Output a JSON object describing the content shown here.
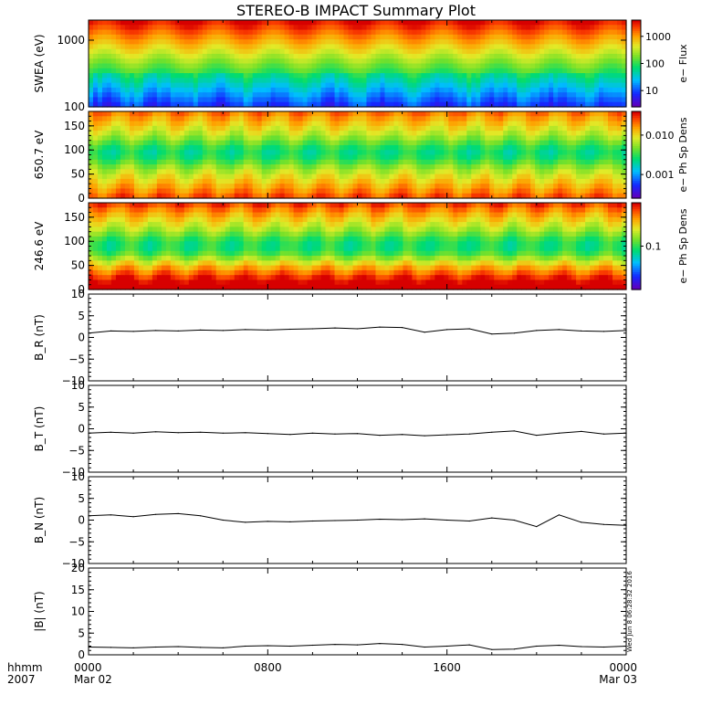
{
  "title": "STEREO-B IMPACT Summary Plot",
  "side_stamp": "Wed Jun  8 06:28:32 2016",
  "time_axis": {
    "row1_labels": [
      "hhmm",
      "0000",
      "0800",
      "1600",
      "0000"
    ],
    "row2_labels": [
      "2007",
      "Mar 02",
      "",
      "",
      "Mar 03"
    ],
    "range_hours": [
      0,
      24
    ]
  },
  "chart_data": [
    {
      "type": "heatmap",
      "ylabel": "SWEA (eV)",
      "y_scale": "log",
      "ylim": [
        100,
        2000
      ],
      "y_ticks": [
        100,
        1000
      ],
      "y_tick_labels": [
        "100",
        "1000"
      ],
      "colorbar": {
        "label": "e− Flux",
        "scale": "log",
        "ticks": [
          10,
          100,
          1000
        ],
        "tick_labels": [
          "10",
          "100",
          "1000"
        ]
      }
    },
    {
      "type": "heatmap",
      "ylabel": "650.7 eV",
      "ylim": [
        0,
        180
      ],
      "y_ticks": [
        0,
        50,
        100,
        150
      ],
      "y_tick_labels": [
        "0",
        "50",
        "100",
        "150"
      ],
      "colorbar": {
        "label": "e− Ph Sp Dens",
        "scale": "log",
        "ticks": [
          0.001,
          0.01
        ],
        "tick_labels": [
          "0.001",
          "0.010"
        ]
      }
    },
    {
      "type": "heatmap",
      "ylabel": "246.6 eV",
      "ylim": [
        0,
        180
      ],
      "y_ticks": [
        0,
        50,
        100,
        150
      ],
      "y_tick_labels": [
        "0",
        "50",
        "100",
        "150"
      ],
      "colorbar": {
        "label": "e− Ph Sp Dens",
        "scale": "log",
        "ticks": [
          0.1
        ],
        "tick_labels": [
          "0.1"
        ]
      }
    },
    {
      "type": "line",
      "ylabel": "B_R (nT)",
      "ylim": [
        -10,
        10
      ],
      "y_ticks": [
        -10,
        -5,
        0,
        5,
        10
      ],
      "y_tick_labels": [
        "−10",
        "−5",
        "0",
        "5",
        "10"
      ],
      "x": [
        0,
        1,
        2,
        3,
        4,
        5,
        6,
        7,
        8,
        9,
        10,
        11,
        12,
        13,
        14,
        15,
        16,
        17,
        18,
        19,
        20,
        21,
        22,
        23,
        24
      ],
      "y": [
        1.0,
        1.5,
        1.4,
        1.6,
        1.5,
        1.7,
        1.6,
        1.8,
        1.7,
        1.9,
        2.0,
        2.2,
        2.0,
        2.4,
        2.3,
        1.2,
        1.8,
        2.0,
        0.8,
        1.0,
        1.6,
        1.8,
        1.5,
        1.4,
        1.6
      ]
    },
    {
      "type": "line",
      "ylabel": "B_T (nT)",
      "ylim": [
        -10,
        10
      ],
      "y_ticks": [
        -10,
        -5,
        0,
        5,
        10
      ],
      "y_tick_labels": [
        "−10",
        "−5",
        "0",
        "5",
        "10"
      ],
      "x": [
        0,
        1,
        2,
        3,
        4,
        5,
        6,
        7,
        8,
        9,
        10,
        11,
        12,
        13,
        14,
        15,
        16,
        17,
        18,
        19,
        20,
        21,
        22,
        23,
        24
      ],
      "y": [
        -1.0,
        -0.8,
        -1.0,
        -0.7,
        -0.9,
        -0.8,
        -1.0,
        -0.9,
        -1.1,
        -1.3,
        -1.0,
        -1.2,
        -1.1,
        -1.5,
        -1.3,
        -1.6,
        -1.4,
        -1.2,
        -0.8,
        -0.5,
        -1.5,
        -1.0,
        -0.6,
        -1.2,
        -1.0
      ]
    },
    {
      "type": "line",
      "ylabel": "B_N (nT)",
      "ylim": [
        -10,
        10
      ],
      "y_ticks": [
        -10,
        -5,
        0,
        5,
        10
      ],
      "y_tick_labels": [
        "−10",
        "−5",
        "0",
        "5",
        "10"
      ],
      "x": [
        0,
        1,
        2,
        3,
        4,
        5,
        6,
        7,
        8,
        9,
        10,
        11,
        12,
        13,
        14,
        15,
        16,
        17,
        18,
        19,
        20,
        21,
        22,
        23,
        24
      ],
      "y": [
        1.0,
        1.2,
        0.8,
        1.3,
        1.5,
        1.0,
        0.0,
        -0.5,
        -0.3,
        -0.4,
        -0.2,
        -0.1,
        0.0,
        0.2,
        0.1,
        0.3,
        0.0,
        -0.2,
        0.5,
        0.0,
        -1.5,
        1.2,
        -0.5,
        -1.0,
        -1.2
      ]
    },
    {
      "type": "line",
      "ylabel": "|B| (nT)",
      "ylim": [
        0,
        20
      ],
      "y_ticks": [
        0,
        5,
        10,
        15,
        20
      ],
      "y_tick_labels": [
        "0",
        "5",
        "10",
        "15",
        "20"
      ],
      "x": [
        0,
        1,
        2,
        3,
        4,
        5,
        6,
        7,
        8,
        9,
        10,
        11,
        12,
        13,
        14,
        15,
        16,
        17,
        18,
        19,
        20,
        21,
        22,
        23,
        24
      ],
      "y": [
        1.8,
        1.7,
        1.6,
        1.8,
        1.9,
        1.7,
        1.6,
        2.0,
        2.1,
        2.0,
        2.2,
        2.4,
        2.3,
        2.6,
        2.4,
        1.8,
        2.0,
        2.3,
        1.2,
        1.3,
        2.0,
        2.2,
        1.9,
        1.8,
        2.0
      ]
    }
  ]
}
